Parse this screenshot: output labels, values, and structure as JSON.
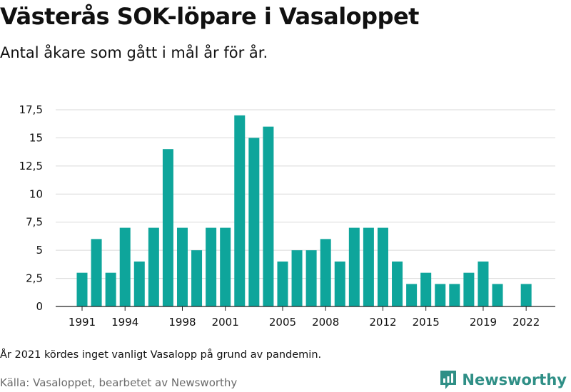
{
  "header": {
    "title": "Västerås SOK-löpare i Vasaloppet",
    "subtitle": "Antal åkare som gått i mål år för år."
  },
  "footer": {
    "note": "År 2021 kördes inget vanligt Vasalopp på grund av pandemin.",
    "source": "Källa: Vasaloppet, bearbetet av Newsworthy",
    "brand": "Newsworthy",
    "brand_icon": "newsworthy-logo-icon",
    "brand_color": "#2f8f86"
  },
  "colors": {
    "bar": "#0ea59b",
    "grid": "#d9d9d9"
  },
  "chart_data": {
    "type": "bar",
    "x": [
      1991,
      1992,
      1993,
      1994,
      1995,
      1996,
      1997,
      1998,
      1999,
      2000,
      2001,
      2002,
      2003,
      2004,
      2005,
      2006,
      2007,
      2008,
      2009,
      2010,
      2011,
      2012,
      2013,
      2014,
      2015,
      2016,
      2017,
      2018,
      2019,
      2020,
      2021,
      2022
    ],
    "values": [
      3,
      6,
      3,
      7,
      4,
      7,
      14,
      7,
      5,
      7,
      7,
      17,
      15,
      16,
      4,
      5,
      5,
      6,
      4,
      7,
      7,
      7,
      4,
      2,
      3,
      2,
      2,
      3,
      4,
      2,
      null,
      2
    ],
    "x_tick_labels": [
      "1991",
      "1994",
      "1998",
      "2001",
      "2005",
      "2008",
      "2012",
      "2015",
      "2019",
      "2022"
    ],
    "x_tick_years": [
      1991,
      1994,
      1998,
      2001,
      2005,
      2008,
      2012,
      2015,
      2019,
      2022
    ],
    "y_ticks": [
      0,
      2.5,
      5,
      7.5,
      10,
      12.5,
      15,
      17.5
    ],
    "y_tick_labels": [
      "0",
      "2,5",
      "5",
      "7,5",
      "10",
      "12,5",
      "15",
      "17,5"
    ],
    "ylim": [
      0,
      17.5
    ],
    "grid": true
  }
}
